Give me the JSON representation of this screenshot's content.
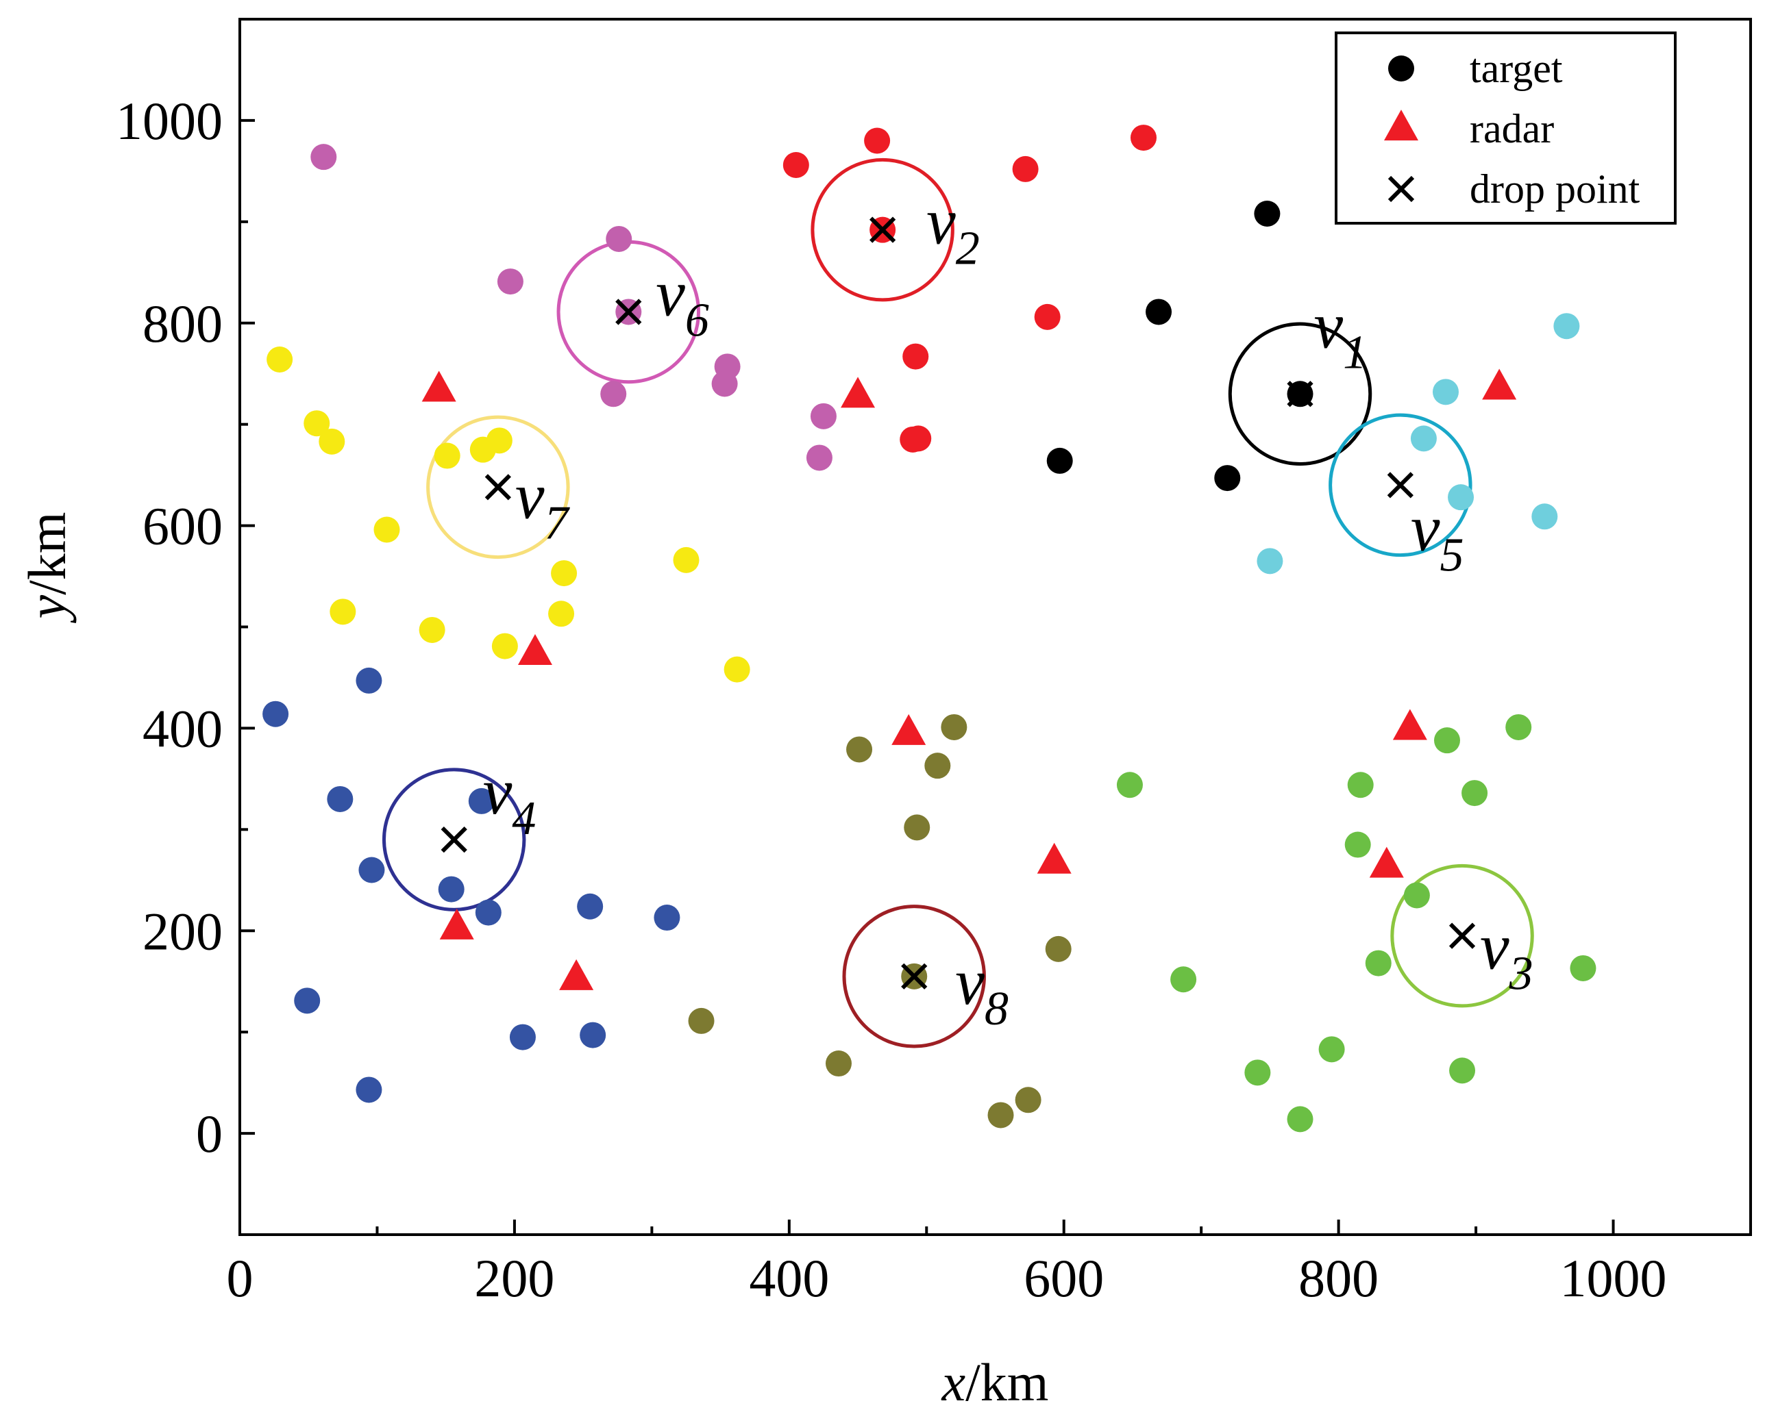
{
  "chart_data": {
    "type": "scatter",
    "xlabel_var": "x",
    "xlabel_unit": "/km",
    "ylabel_var": "y",
    "ylabel_unit": "/km",
    "xlim": [
      0,
      1100
    ],
    "ylim": [
      -100,
      1100
    ],
    "xticks": [
      0,
      200,
      400,
      600,
      800,
      1000
    ],
    "yticks": [
      0,
      200,
      400,
      600,
      800,
      1000
    ],
    "legend": {
      "position": "top-right",
      "entries": [
        {
          "label": "target",
          "marker": "circle",
          "color": "#000000"
        },
        {
          "label": "radar",
          "marker": "triangle",
          "color": "#ee1c25"
        },
        {
          "label": "drop point",
          "marker": "cross",
          "color": "#000000"
        }
      ]
    },
    "clusters": [
      {
        "name": "v1",
        "var": "v",
        "sub": "1",
        "color": "#000000",
        "ring_color": "#000000",
        "drop": [
          772,
          730
        ],
        "targets": [
          [
            748,
            908
          ],
          [
            669,
            811
          ],
          [
            772,
            730
          ],
          [
            597,
            664
          ],
          [
            719,
            647
          ]
        ]
      },
      {
        "name": "v2",
        "var": "v",
        "sub": "2",
        "color": "#ee1c25",
        "ring_color": "#e01e26",
        "drop": [
          468,
          892
        ],
        "targets": [
          [
            405,
            956
          ],
          [
            464,
            980
          ],
          [
            572,
            952
          ],
          [
            658,
            983
          ],
          [
            468,
            892
          ],
          [
            588,
            806
          ],
          [
            492,
            767
          ],
          [
            490,
            685
          ],
          [
            494,
            686
          ]
        ]
      },
      {
        "name": "v3",
        "var": "v",
        "sub": "3",
        "color": "#6bbf44",
        "ring_color": "#8cc63f",
        "drop": [
          890,
          195
        ],
        "targets": [
          [
            879,
            388
          ],
          [
            931,
            401
          ],
          [
            816,
            344
          ],
          [
            648,
            344
          ],
          [
            899,
            336
          ],
          [
            814,
            285
          ],
          [
            857,
            235
          ],
          [
            687,
            152
          ],
          [
            829,
            168
          ],
          [
            978,
            163
          ],
          [
            795,
            83
          ],
          [
            741,
            60
          ],
          [
            772,
            14
          ],
          [
            890,
            62
          ]
        ]
      },
      {
        "name": "v4",
        "var": "v",
        "sub": "4",
        "color": "#3453a3",
        "ring_color": "#2e3192",
        "drop": [
          156,
          290
        ],
        "targets": [
          [
            26,
            414
          ],
          [
            94,
            447
          ],
          [
            73,
            330
          ],
          [
            176,
            328
          ],
          [
            96,
            260
          ],
          [
            154,
            241
          ],
          [
            181,
            218
          ],
          [
            255,
            224
          ],
          [
            311,
            213
          ],
          [
            49,
            131
          ],
          [
            206,
            95
          ],
          [
            257,
            97
          ],
          [
            94,
            43
          ]
        ]
      },
      {
        "name": "v5",
        "var": "v",
        "sub": "5",
        "color": "#6fcfdd",
        "ring_color": "#18a7c8",
        "drop": [
          845,
          640
        ],
        "targets": [
          [
            966,
            797
          ],
          [
            878,
            732
          ],
          [
            862,
            686
          ],
          [
            889,
            628
          ],
          [
            950,
            609
          ],
          [
            750,
            565
          ]
        ]
      },
      {
        "name": "v6",
        "var": "v",
        "sub": "6",
        "color": "#c260ad",
        "ring_color": "#d159b4",
        "drop": [
          283,
          811
        ],
        "targets": [
          [
            61,
            964
          ],
          [
            276,
            883
          ],
          [
            197,
            841
          ],
          [
            283,
            811
          ],
          [
            355,
            757
          ],
          [
            353,
            740
          ],
          [
            272,
            730
          ],
          [
            425,
            708
          ],
          [
            422,
            667
          ]
        ]
      },
      {
        "name": "v7",
        "var": "v",
        "sub": "7",
        "color": "#f6e912",
        "ring_color": "#f7df7a",
        "drop": [
          188,
          638
        ],
        "targets": [
          [
            29,
            764
          ],
          [
            56,
            701
          ],
          [
            67,
            683
          ],
          [
            151,
            669
          ],
          [
            177,
            675
          ],
          [
            189,
            684
          ],
          [
            107,
            596
          ],
          [
            325,
            566
          ],
          [
            236,
            553
          ],
          [
            75,
            515
          ],
          [
            234,
            513
          ],
          [
            140,
            497
          ],
          [
            193,
            481
          ],
          [
            362,
            458
          ]
        ]
      },
      {
        "name": "v8",
        "var": "v",
        "sub": "8",
        "color": "#7d7a31",
        "ring_color": "#9e1f24",
        "drop": [
          491,
          155
        ],
        "targets": [
          [
            520,
            401
          ],
          [
            451,
            379
          ],
          [
            508,
            363
          ],
          [
            493,
            302
          ],
          [
            596,
            182
          ],
          [
            491,
            155
          ],
          [
            336,
            111
          ],
          [
            436,
            69
          ],
          [
            574,
            33
          ],
          [
            554,
            18
          ]
        ]
      }
    ],
    "radars": [
      [
        145,
        734
      ],
      [
        450,
        728
      ],
      [
        917,
        736
      ],
      [
        215,
        474
      ],
      [
        487,
        395
      ],
      [
        852,
        400
      ],
      [
        593,
        268
      ],
      [
        835,
        264
      ],
      [
        158,
        203
      ],
      [
        245,
        153
      ]
    ]
  }
}
